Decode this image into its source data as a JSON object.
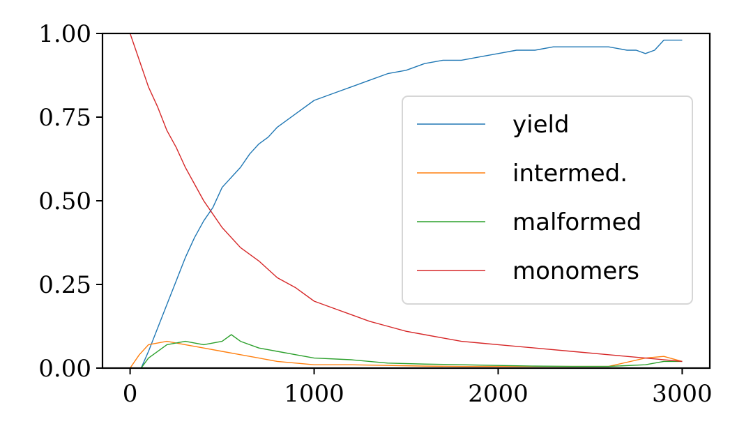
{
  "chart_data": {
    "type": "line",
    "title": "",
    "xlabel": "",
    "ylabel": "",
    "xlim": [
      -150,
      3150
    ],
    "ylim": [
      0,
      1
    ],
    "xticks": [
      0,
      1000,
      2000,
      3000
    ],
    "xtick_labels": [
      "0",
      "1000",
      "2000",
      "3000"
    ],
    "yticks": [
      0,
      0.25,
      0.5,
      0.75,
      1
    ],
    "ytick_labels": [
      "0.00",
      "0.25",
      "0.50",
      "0.75",
      "1.00"
    ],
    "grid": false,
    "legend_position": "right",
    "series": [
      {
        "name": "yield",
        "color": "#1f77b4",
        "x": [
          0,
          60,
          100,
          150,
          200,
          250,
          300,
          350,
          400,
          450,
          500,
          550,
          600,
          650,
          700,
          750,
          800,
          850,
          900,
          1000,
          1100,
          1200,
          1300,
          1400,
          1500,
          1600,
          1700,
          1800,
          1900,
          2000,
          2100,
          2200,
          2300,
          2400,
          2500,
          2600,
          2700,
          2750,
          2800,
          2850,
          2900,
          3000
        ],
        "y": [
          0,
          0,
          0.05,
          0.12,
          0.19,
          0.26,
          0.33,
          0.39,
          0.44,
          0.48,
          0.54,
          0.57,
          0.6,
          0.64,
          0.67,
          0.69,
          0.72,
          0.74,
          0.76,
          0.8,
          0.82,
          0.84,
          0.86,
          0.88,
          0.89,
          0.91,
          0.92,
          0.92,
          0.93,
          0.94,
          0.95,
          0.95,
          0.96,
          0.96,
          0.96,
          0.96,
          0.95,
          0.95,
          0.94,
          0.95,
          0.98,
          0.98
        ]
      },
      {
        "name": "intermed.",
        "color": "#ff7f0e",
        "x": [
          0,
          50,
          100,
          200,
          300,
          400,
          500,
          600,
          700,
          800,
          900,
          1000,
          1200,
          1400,
          1600,
          1800,
          2000,
          2200,
          2400,
          2600,
          2800,
          2900,
          3000
        ],
        "y": [
          0,
          0.04,
          0.07,
          0.08,
          0.07,
          0.06,
          0.05,
          0.04,
          0.03,
          0.02,
          0.015,
          0.01,
          0.01,
          0.008,
          0.006,
          0.005,
          0.005,
          0.005,
          0.005,
          0.005,
          0.03,
          0.035,
          0.02
        ]
      },
      {
        "name": "malformed",
        "color": "#2ca02c",
        "x": [
          0,
          60,
          100,
          200,
          300,
          400,
          500,
          550,
          600,
          700,
          800,
          900,
          1000,
          1200,
          1400,
          1600,
          1800,
          2000,
          2200,
          2400,
          2600,
          2800,
          2900,
          3000
        ],
        "y": [
          0,
          0,
          0.03,
          0.07,
          0.08,
          0.07,
          0.08,
          0.1,
          0.08,
          0.06,
          0.05,
          0.04,
          0.03,
          0.025,
          0.015,
          0.012,
          0.01,
          0.008,
          0.006,
          0.005,
          0.005,
          0.01,
          0.02,
          0.02
        ]
      },
      {
        "name": "monomers",
        "color": "#d62728",
        "x": [
          0,
          50,
          100,
          150,
          200,
          250,
          300,
          350,
          400,
          450,
          500,
          600,
          700,
          800,
          900,
          1000,
          1100,
          1200,
          1300,
          1400,
          1500,
          1600,
          1700,
          1800,
          1900,
          2000,
          2200,
          2400,
          2600,
          2800,
          3000
        ],
        "y": [
          1,
          0.92,
          0.84,
          0.78,
          0.71,
          0.66,
          0.6,
          0.55,
          0.5,
          0.46,
          0.42,
          0.36,
          0.32,
          0.27,
          0.24,
          0.2,
          0.18,
          0.16,
          0.14,
          0.125,
          0.11,
          0.1,
          0.09,
          0.08,
          0.075,
          0.07,
          0.06,
          0.05,
          0.04,
          0.03,
          0.02
        ]
      }
    ]
  }
}
